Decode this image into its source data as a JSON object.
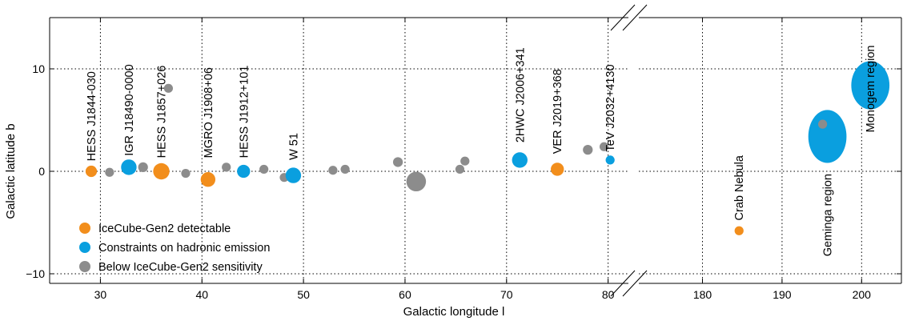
{
  "chart_data": {
    "type": "scatter",
    "xlabel": "Galactic longitude l",
    "ylabel": "Galactic latitude b",
    "ylim": [
      -10,
      10
    ],
    "grid": true,
    "axis_break": "between 80 and 180",
    "panels": [
      {
        "xlim": [
          25,
          82
        ],
        "xticks": [
          30,
          40,
          50,
          60,
          70,
          80
        ]
      },
      {
        "xlim": [
          172,
          205
        ],
        "xticks": [
          180,
          190,
          200
        ]
      }
    ],
    "yticks": [
      -10,
      0,
      10
    ],
    "legend_position": "bottom-left",
    "colors": {
      "detectable": "#f28e1c",
      "hadronic": "#0a9fdf",
      "below": "#8c8c8c"
    },
    "legend": [
      {
        "key": "detectable",
        "label": "IceCube-Gen2 detectable"
      },
      {
        "key": "hadronic",
        "label": "Constraints on hadronic emission"
      },
      {
        "key": "below",
        "label": "Below IceCube-Gen2 sensitivity"
      }
    ],
    "points": [
      {
        "l": 29.1,
        "b": 0.0,
        "class": "detectable",
        "size": 0.7
      },
      {
        "l": 30.9,
        "b": -0.1,
        "class": "below",
        "size": 0.55
      },
      {
        "l": 32.8,
        "b": 0.4,
        "class": "hadronic",
        "size": 0.95
      },
      {
        "l": 34.2,
        "b": 0.4,
        "class": "below",
        "size": 0.6
      },
      {
        "l": 36.0,
        "b": 0.0,
        "class": "detectable",
        "size": 1.0
      },
      {
        "l": 36.7,
        "b": 8.1,
        "class": "below",
        "size": 0.55
      },
      {
        "l": 38.4,
        "b": -0.2,
        "class": "below",
        "size": 0.55
      },
      {
        "l": 40.6,
        "b": -0.8,
        "class": "detectable",
        "size": 0.9
      },
      {
        "l": 42.4,
        "b": 0.4,
        "class": "below",
        "size": 0.55
      },
      {
        "l": 44.1,
        "b": 0.0,
        "class": "hadronic",
        "size": 0.8
      },
      {
        "l": 46.1,
        "b": 0.2,
        "class": "below",
        "size": 0.55
      },
      {
        "l": 48.1,
        "b": -0.6,
        "class": "below",
        "size": 0.55
      },
      {
        "l": 49.0,
        "b": -0.4,
        "class": "hadronic",
        "size": 0.95
      },
      {
        "l": 52.9,
        "b": 0.1,
        "class": "below",
        "size": 0.55
      },
      {
        "l": 54.1,
        "b": 0.2,
        "class": "below",
        "size": 0.55
      },
      {
        "l": 59.3,
        "b": 0.9,
        "class": "below",
        "size": 0.6
      },
      {
        "l": 61.1,
        "b": -1.0,
        "class": "below",
        "size": 1.2
      },
      {
        "l": 65.4,
        "b": 0.2,
        "class": "below",
        "size": 0.55
      },
      {
        "l": 65.9,
        "b": 1.0,
        "class": "below",
        "size": 0.55
      },
      {
        "l": 71.3,
        "b": 1.1,
        "class": "hadronic",
        "size": 0.95
      },
      {
        "l": 75.0,
        "b": 0.2,
        "class": "detectable",
        "size": 0.8
      },
      {
        "l": 78.0,
        "b": 2.1,
        "class": "below",
        "size": 0.6
      },
      {
        "l": 79.6,
        "b": 2.4,
        "class": "below",
        "size": 0.55
      },
      {
        "l": 80.2,
        "b": 1.1,
        "class": "hadronic",
        "size": 0.55
      },
      {
        "l": 184.6,
        "b": -5.8,
        "class": "detectable",
        "size": 0.55
      },
      {
        "l": 195.7,
        "b": 3.4,
        "class": "hadronic",
        "rx": 2.4,
        "ry": 3.4
      },
      {
        "l": 195.1,
        "b": 4.6,
        "class": "below",
        "size": 0.55
      },
      {
        "l": 201.1,
        "b": 8.4,
        "class": "hadronic",
        "rx": 2.4,
        "ry": 3.1
      }
    ],
    "labels": [
      {
        "text": "HESS J1844-030",
        "l": 29.1,
        "b": 1.0
      },
      {
        "text": "IGR J18490-0000",
        "l": 32.8,
        "b": 1.5
      },
      {
        "text": "HESS J1857+026",
        "l": 36.0,
        "b": 1.3
      },
      {
        "text": "MGRO J1908+06",
        "l": 40.6,
        "b": 1.3
      },
      {
        "text": "HESS J1912+101",
        "l": 44.1,
        "b": 1.3
      },
      {
        "text": "W 51",
        "l": 49.0,
        "b": 1.1
      },
      {
        "text": "2HWC J2006+341",
        "l": 71.3,
        "b": 2.8
      },
      {
        "text": "VER J2019+368",
        "l": 75.0,
        "b": 1.7
      },
      {
        "text": "TeV J2032+4130",
        "l": 80.2,
        "b": 1.9
      },
      {
        "text": "Crab Nebula",
        "l": 184.6,
        "b": -4.8
      },
      {
        "text": "Geminga region",
        "l": 195.7,
        "b": -8.3
      },
      {
        "text": "Monogem region",
        "l": 201.1,
        "b": 3.8
      }
    ]
  }
}
